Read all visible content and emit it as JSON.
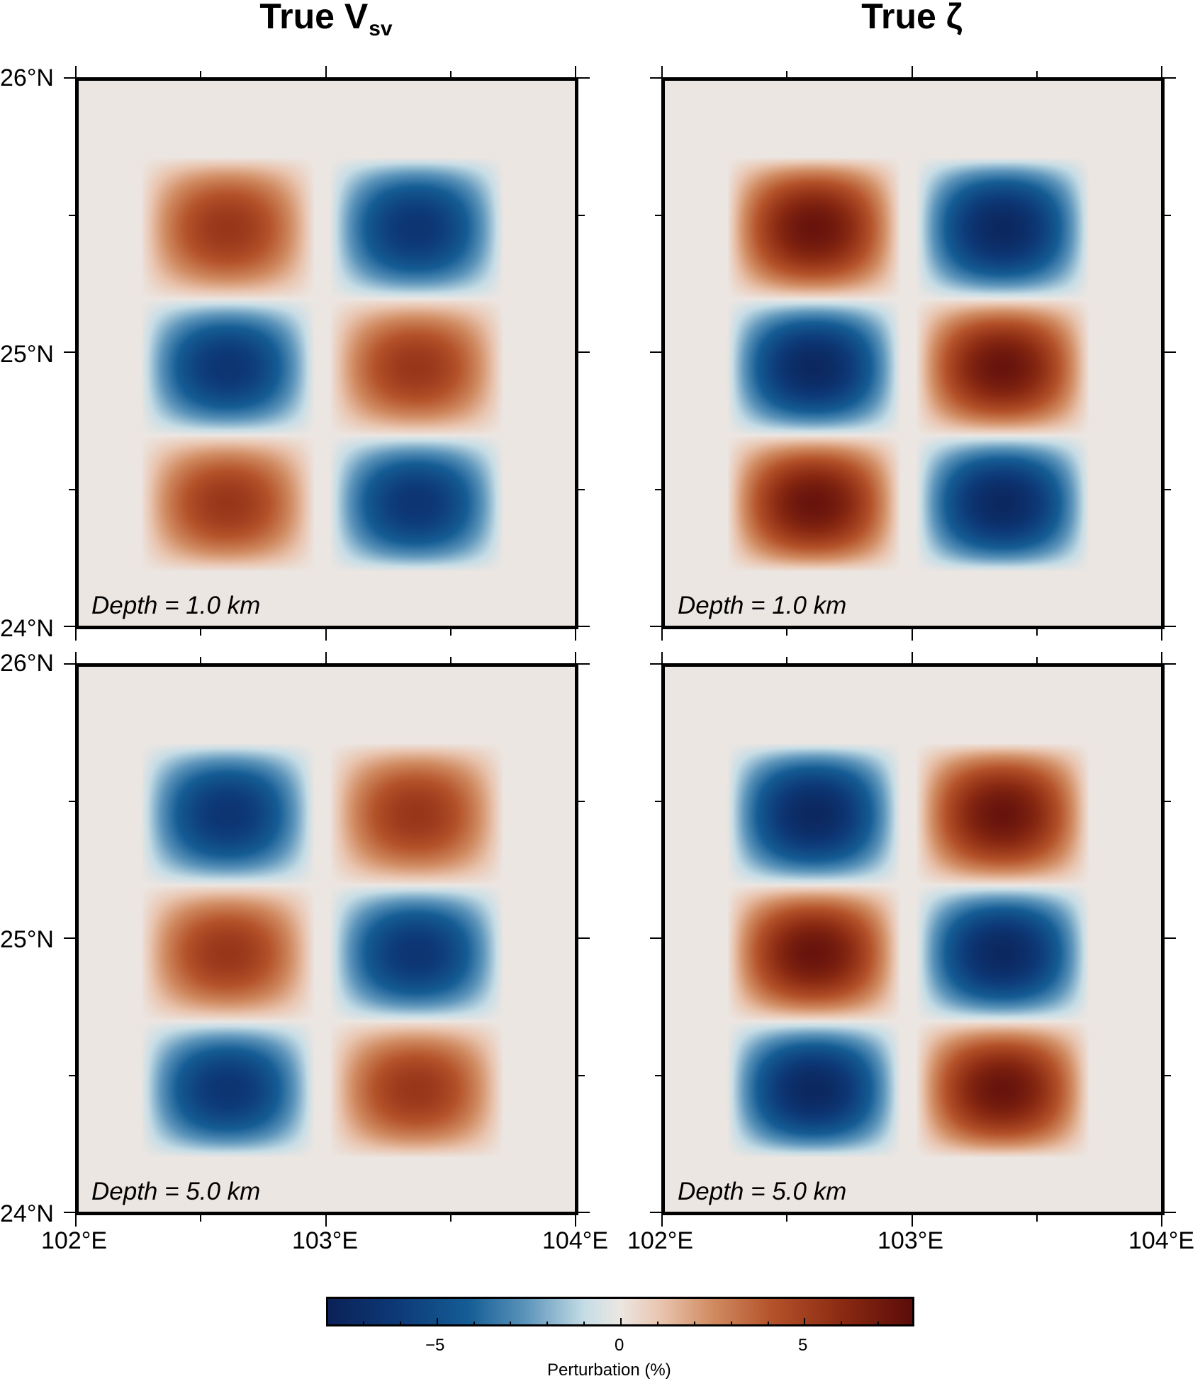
{
  "columns": [
    {
      "title_main": "True V",
      "title_sub": "sv"
    },
    {
      "title_main": "True ζ",
      "title_sub": ""
    }
  ],
  "panels": [
    {
      "id": "vsv-1km",
      "depth_label": "Depth = 1.0 km",
      "blocks": [
        [
          5.5,
          -6.5
        ],
        [
          -6.5,
          5.5
        ],
        [
          5.5,
          -6.5
        ]
      ]
    },
    {
      "id": "zeta-1km",
      "depth_label": "Depth = 1.0 km",
      "blocks": [
        [
          7.5,
          -7.5
        ],
        [
          -7.5,
          7.5
        ],
        [
          7.5,
          -7.5
        ]
      ]
    },
    {
      "id": "vsv-5km",
      "depth_label": "Depth = 5.0 km",
      "blocks": [
        [
          -6.5,
          5.5
        ],
        [
          5.5,
          -6.5
        ],
        [
          -6.5,
          5.5
        ]
      ]
    },
    {
      "id": "zeta-5km",
      "depth_label": "Depth = 5.0 km",
      "blocks": [
        [
          -7.5,
          7.5
        ],
        [
          7.5,
          -7.5
        ],
        [
          -7.5,
          7.5
        ]
      ]
    }
  ],
  "axes": {
    "lon_labels": [
      "102°E",
      "103°E",
      "104°E"
    ],
    "lat_labels": [
      "26°N",
      "25°N",
      "24°N"
    ],
    "lon_range": [
      102,
      104
    ],
    "lat_range": [
      24,
      26
    ]
  },
  "colorbar": {
    "title": "Perturbation (%)",
    "range": [
      -8,
      8
    ],
    "tick_labels": [
      "−5",
      "0",
      "5"
    ],
    "tick_values": [
      -5,
      0,
      5
    ]
  }
}
